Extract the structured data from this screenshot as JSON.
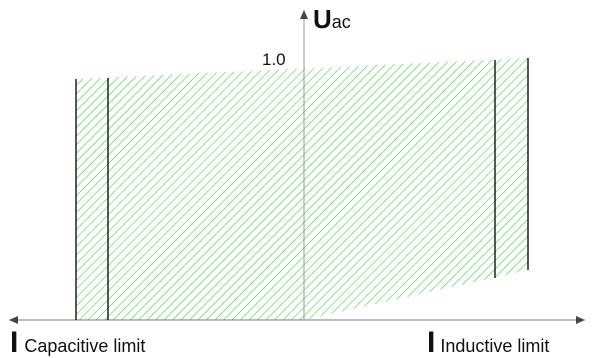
{
  "diagram": {
    "y_axis_label_main": "U",
    "y_axis_label_sub": "ac",
    "y_tick_label": "1.0",
    "x_left_label_main": "I",
    "x_left_label_sub": "Capacitive limit",
    "x_right_label_main": "I",
    "x_right_label_sub": "Inductive limit"
  },
  "colors": {
    "hatch": "#33cc33",
    "axis": "#999999",
    "boundary": "#111111",
    "text": "#111111"
  }
}
